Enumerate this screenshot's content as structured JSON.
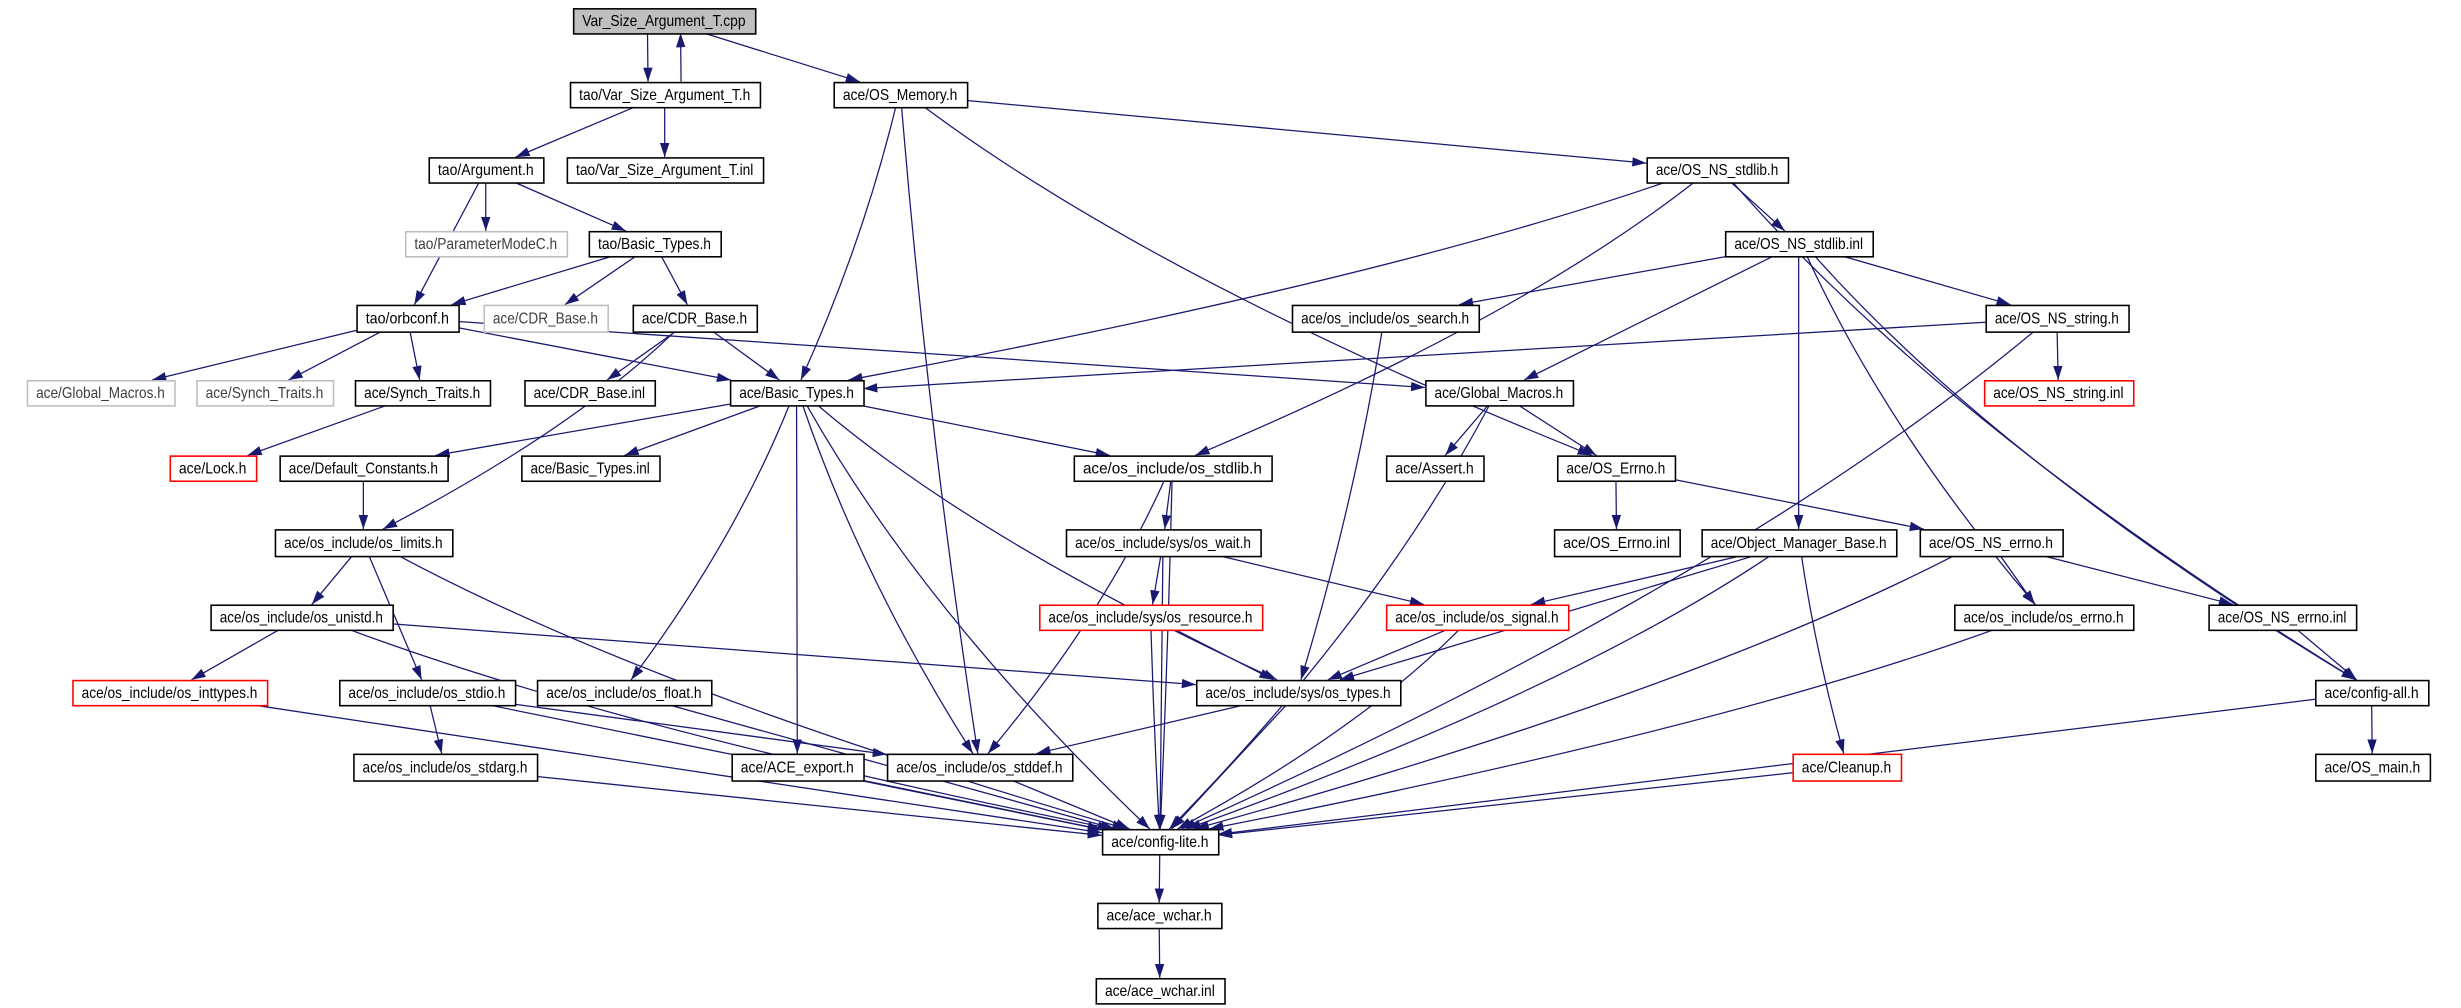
{
  "graph": {
    "edge_color": "#191970",
    "nodes": [
      {
        "id": "root",
        "label": "Var_Size_Argument_T.cpp",
        "style": "root"
      },
      {
        "id": "varh",
        "label": "tao/Var_Size_Argument_T.h",
        "style": "normal"
      },
      {
        "id": "osmem",
        "label": "ace/OS_Memory.h",
        "style": "normal"
      },
      {
        "id": "arg",
        "label": "tao/Argument.h",
        "style": "normal"
      },
      {
        "id": "varinl",
        "label": "tao/Var_Size_Argument_T.inl",
        "style": "normal"
      },
      {
        "id": "pmc",
        "label": "tao/ParameterModeC.h",
        "style": "gray"
      },
      {
        "id": "taobt",
        "label": "tao/Basic_Types.h",
        "style": "normal"
      },
      {
        "id": "orbconf",
        "label": "tao/orbconf.h",
        "style": "normal"
      },
      {
        "id": "cdrg",
        "label": "ace/CDR_Base.h",
        "style": "gray"
      },
      {
        "id": "cdr",
        "label": "ace/CDR_Base.h",
        "style": "normal"
      },
      {
        "id": "gmg",
        "label": "ace/Global_Macros.h",
        "style": "gray"
      },
      {
        "id": "stg",
        "label": "ace/Synch_Traits.h",
        "style": "gray"
      },
      {
        "id": "st",
        "label": "ace/Synch_Traits.h",
        "style": "normal"
      },
      {
        "id": "cdrinl",
        "label": "ace/CDR_Base.inl",
        "style": "normal"
      },
      {
        "id": "abt",
        "label": "ace/Basic_Types.h",
        "style": "normal"
      },
      {
        "id": "lock",
        "label": "ace/Lock.h",
        "style": "red"
      },
      {
        "id": "defc",
        "label": "ace/Default_Constants.h",
        "style": "normal"
      },
      {
        "id": "btinl",
        "label": "ace/Basic_Types.inl",
        "style": "normal"
      },
      {
        "id": "osstdlib",
        "label": "ace/os_include/os_stdlib.h",
        "style": "normal"
      },
      {
        "id": "nsstdlib",
        "label": "ace/OS_NS_stdlib.h",
        "style": "normal"
      },
      {
        "id": "nsstdlibinl",
        "label": "ace/OS_NS_stdlib.inl",
        "style": "normal"
      },
      {
        "id": "search",
        "label": "ace/os_include/os_search.h",
        "style": "normal"
      },
      {
        "id": "nsstring",
        "label": "ace/OS_NS_string.h",
        "style": "normal"
      },
      {
        "id": "gm",
        "label": "ace/Global_Macros.h",
        "style": "normal"
      },
      {
        "id": "nsstringinl",
        "label": "ace/OS_NS_string.inl",
        "style": "red"
      },
      {
        "id": "assert",
        "label": "ace/Assert.h",
        "style": "normal"
      },
      {
        "id": "errno",
        "label": "ace/OS_Errno.h",
        "style": "normal"
      },
      {
        "id": "limits",
        "label": "ace/os_include/os_limits.h",
        "style": "normal"
      },
      {
        "id": "wait",
        "label": "ace/os_include/sys/os_wait.h",
        "style": "normal"
      },
      {
        "id": "errnoinl",
        "label": "ace/OS_Errno.inl",
        "style": "normal"
      },
      {
        "id": "omb",
        "label": "ace/Object_Manager_Base.h",
        "style": "normal"
      },
      {
        "id": "nserrno",
        "label": "ace/OS_NS_errno.h",
        "style": "normal"
      },
      {
        "id": "unistd",
        "label": "ace/os_include/os_unistd.h",
        "style": "normal"
      },
      {
        "id": "resource",
        "label": "ace/os_include/sys/os_resource.h",
        "style": "red"
      },
      {
        "id": "signal",
        "label": "ace/os_include/os_signal.h",
        "style": "red"
      },
      {
        "id": "oserrno",
        "label": "ace/os_include/os_errno.h",
        "style": "normal"
      },
      {
        "id": "nserrnoinl",
        "label": "ace/OS_NS_errno.inl",
        "style": "normal"
      },
      {
        "id": "inttypes",
        "label": "ace/os_include/os_inttypes.h",
        "style": "red"
      },
      {
        "id": "stdio",
        "label": "ace/os_include/os_stdio.h",
        "style": "normal"
      },
      {
        "id": "float",
        "label": "ace/os_include/os_float.h",
        "style": "normal"
      },
      {
        "id": "types",
        "label": "ace/os_include/sys/os_types.h",
        "style": "normal"
      },
      {
        "id": "configall",
        "label": "ace/config-all.h",
        "style": "normal"
      },
      {
        "id": "stdarg",
        "label": "ace/os_include/os_stdarg.h",
        "style": "normal"
      },
      {
        "id": "export",
        "label": "ace/ACE_export.h",
        "style": "normal"
      },
      {
        "id": "stddef",
        "label": "ace/os_include/os_stddef.h",
        "style": "normal"
      },
      {
        "id": "cleanup",
        "label": "ace/Cleanup.h",
        "style": "red"
      },
      {
        "id": "osmain",
        "label": "ace/OS_main.h",
        "style": "normal"
      },
      {
        "id": "lite",
        "label": "ace/config-lite.h",
        "style": "normal"
      },
      {
        "id": "wchar",
        "label": "ace/ace_wchar.h",
        "style": "normal"
      },
      {
        "id": "wcharinl",
        "label": "ace/ace_wchar.inl",
        "style": "normal"
      }
    ],
    "edges": [
      [
        "root",
        "varh"
      ],
      [
        "varh",
        "root"
      ],
      [
        "root",
        "osmem"
      ],
      [
        "varh",
        "arg"
      ],
      [
        "varh",
        "varinl"
      ],
      [
        "arg",
        "pmc"
      ],
      [
        "arg",
        "taobt"
      ],
      [
        "arg",
        "orbconf"
      ],
      [
        "taobt",
        "orbconf"
      ],
      [
        "taobt",
        "cdrg"
      ],
      [
        "taobt",
        "cdr"
      ],
      [
        "orbconf",
        "gmg"
      ],
      [
        "orbconf",
        "stg"
      ],
      [
        "orbconf",
        "st"
      ],
      [
        "orbconf",
        "abt"
      ],
      [
        "orbconf",
        "gm"
      ],
      [
        "cdr",
        "cdrinl"
      ],
      [
        "cdr",
        "abt"
      ],
      [
        "cdr",
        "limits"
      ],
      [
        "st",
        "lock"
      ],
      [
        "osmem",
        "abt"
      ],
      [
        "osmem",
        "stddef"
      ],
      [
        "osmem",
        "nsstdlib"
      ],
      [
        "osmem",
        "errno"
      ],
      [
        "nsstdlib",
        "abt"
      ],
      [
        "nsstdlib",
        "osstdlib"
      ],
      [
        "nsstdlib",
        "nsstdlibinl"
      ],
      [
        "nsstdlib",
        "configall"
      ],
      [
        "nsstdlibinl",
        "search"
      ],
      [
        "nsstdlibinl",
        "gm"
      ],
      [
        "nsstdlibinl",
        "omb"
      ],
      [
        "nsstdlibinl",
        "oserrno"
      ],
      [
        "nsstdlibinl",
        "nsstring"
      ],
      [
        "nsstdlibinl",
        "configall"
      ],
      [
        "nsstring",
        "abt"
      ],
      [
        "nsstring",
        "nsstringinl"
      ],
      [
        "nsstring",
        "lite"
      ],
      [
        "search",
        "types"
      ],
      [
        "gm",
        "assert"
      ],
      [
        "gm",
        "errno"
      ],
      [
        "gm",
        "lite"
      ],
      [
        "errno",
        "errnoinl"
      ],
      [
        "errno",
        "nserrno"
      ],
      [
        "abt",
        "defc"
      ],
      [
        "abt",
        "btinl"
      ],
      [
        "abt",
        "osstdlib"
      ],
      [
        "abt",
        "float"
      ],
      [
        "abt",
        "export"
      ],
      [
        "abt",
        "stddef"
      ],
      [
        "abt",
        "types"
      ],
      [
        "abt",
        "lite"
      ],
      [
        "defc",
        "limits"
      ],
      [
        "osstdlib",
        "wait"
      ],
      [
        "osstdlib",
        "stddef"
      ],
      [
        "osstdlib",
        "lite"
      ],
      [
        "wait",
        "resource"
      ],
      [
        "wait",
        "signal"
      ],
      [
        "wait",
        "lite"
      ],
      [
        "resource",
        "types"
      ],
      [
        "resource",
        "lite"
      ],
      [
        "signal",
        "types"
      ],
      [
        "signal",
        "lite"
      ],
      [
        "omb",
        "signal"
      ],
      [
        "omb",
        "types"
      ],
      [
        "omb",
        "cleanup"
      ],
      [
        "omb",
        "lite"
      ],
      [
        "nserrno",
        "oserrno"
      ],
      [
        "nserrno",
        "nserrnoinl"
      ],
      [
        "nserrno",
        "lite"
      ],
      [
        "oserrno",
        "lite"
      ],
      [
        "nserrnoinl",
        "configall"
      ],
      [
        "configall",
        "osmain"
      ],
      [
        "configall",
        "lite"
      ],
      [
        "cleanup",
        "lite"
      ],
      [
        "limits",
        "unistd"
      ],
      [
        "limits",
        "stdio"
      ],
      [
        "limits",
        "lite"
      ],
      [
        "unistd",
        "inttypes"
      ],
      [
        "unistd",
        "types"
      ],
      [
        "unistd",
        "lite"
      ],
      [
        "inttypes",
        "lite"
      ],
      [
        "stdio",
        "stdarg"
      ],
      [
        "stdio",
        "stddef"
      ],
      [
        "stdio",
        "lite"
      ],
      [
        "float",
        "lite"
      ],
      [
        "stdarg",
        "lite"
      ],
      [
        "export",
        "lite"
      ],
      [
        "stddef",
        "lite"
      ],
      [
        "types",
        "stddef"
      ],
      [
        "types",
        "lite"
      ],
      [
        "lite",
        "wchar"
      ],
      [
        "wchar",
        "wcharinl"
      ]
    ]
  }
}
